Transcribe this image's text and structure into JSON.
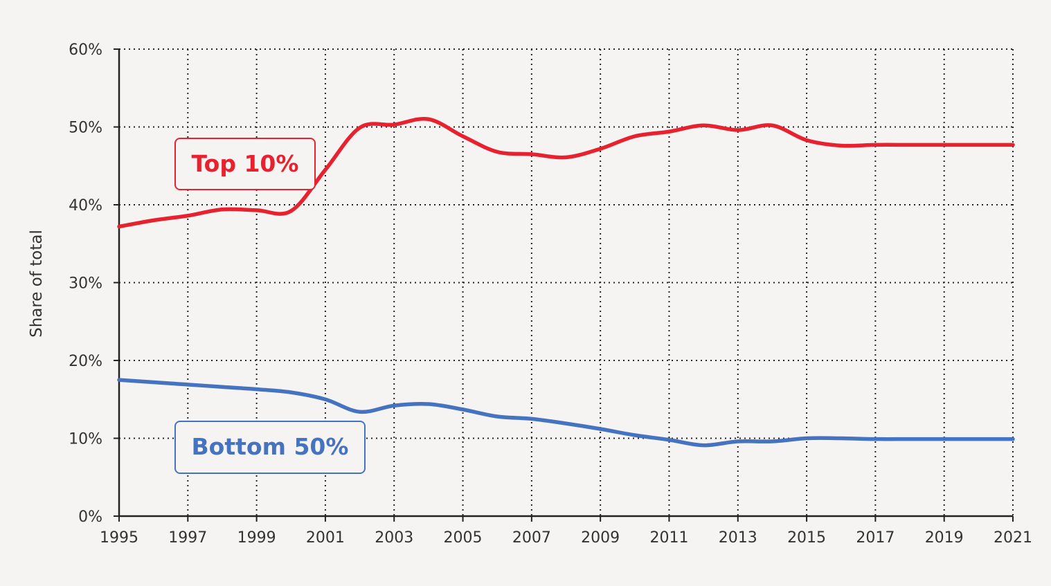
{
  "chart_data": {
    "type": "line",
    "title": "",
    "xlabel": "",
    "ylabel": "Share of total",
    "xlim": [
      1995,
      2021
    ],
    "ylim": [
      0,
      60
    ],
    "x_ticks": [
      "1995",
      "1997",
      "1999",
      "2001",
      "2003",
      "2005",
      "2007",
      "2009",
      "2011",
      "2013",
      "2015",
      "2017",
      "2019",
      "2021"
    ],
    "y_ticks": [
      "0%",
      "10%",
      "20%",
      "30%",
      "40%",
      "50%",
      "60%"
    ],
    "grid": true,
    "series": [
      {
        "name": "Top 10%",
        "color": "#e8212e",
        "x": [
          1995,
          1996,
          1997,
          1998,
          1999,
          2000,
          2001,
          2002,
          2003,
          2004,
          2005,
          2006,
          2007,
          2008,
          2009,
          2010,
          2011,
          2012,
          2013,
          2014,
          2015,
          2016,
          2017,
          2018,
          2019,
          2020,
          2021
        ],
        "y": [
          37.2,
          38.0,
          38.6,
          39.4,
          39.3,
          39.2,
          44.5,
          49.9,
          50.3,
          51.0,
          48.8,
          46.8,
          46.5,
          46.1,
          47.2,
          48.8,
          49.4,
          50.2,
          49.6,
          50.2,
          48.3,
          47.6,
          47.7,
          47.7,
          47.7,
          47.7,
          47.7
        ]
      },
      {
        "name": "Bottom 50%",
        "color": "#4673bf",
        "x": [
          1995,
          1996,
          1997,
          1998,
          1999,
          2000,
          2001,
          2002,
          2003,
          2004,
          2005,
          2006,
          2007,
          2008,
          2009,
          2010,
          2011,
          2012,
          2013,
          2014,
          2015,
          2016,
          2017,
          2018,
          2019,
          2020,
          2021
        ],
        "y": [
          17.5,
          17.2,
          16.9,
          16.6,
          16.3,
          15.9,
          15.0,
          13.4,
          14.2,
          14.4,
          13.7,
          12.8,
          12.5,
          11.9,
          11.2,
          10.4,
          9.8,
          9.1,
          9.6,
          9.6,
          10.0,
          10.0,
          9.9,
          9.9,
          9.9,
          9.9,
          9.9
        ]
      }
    ]
  }
}
